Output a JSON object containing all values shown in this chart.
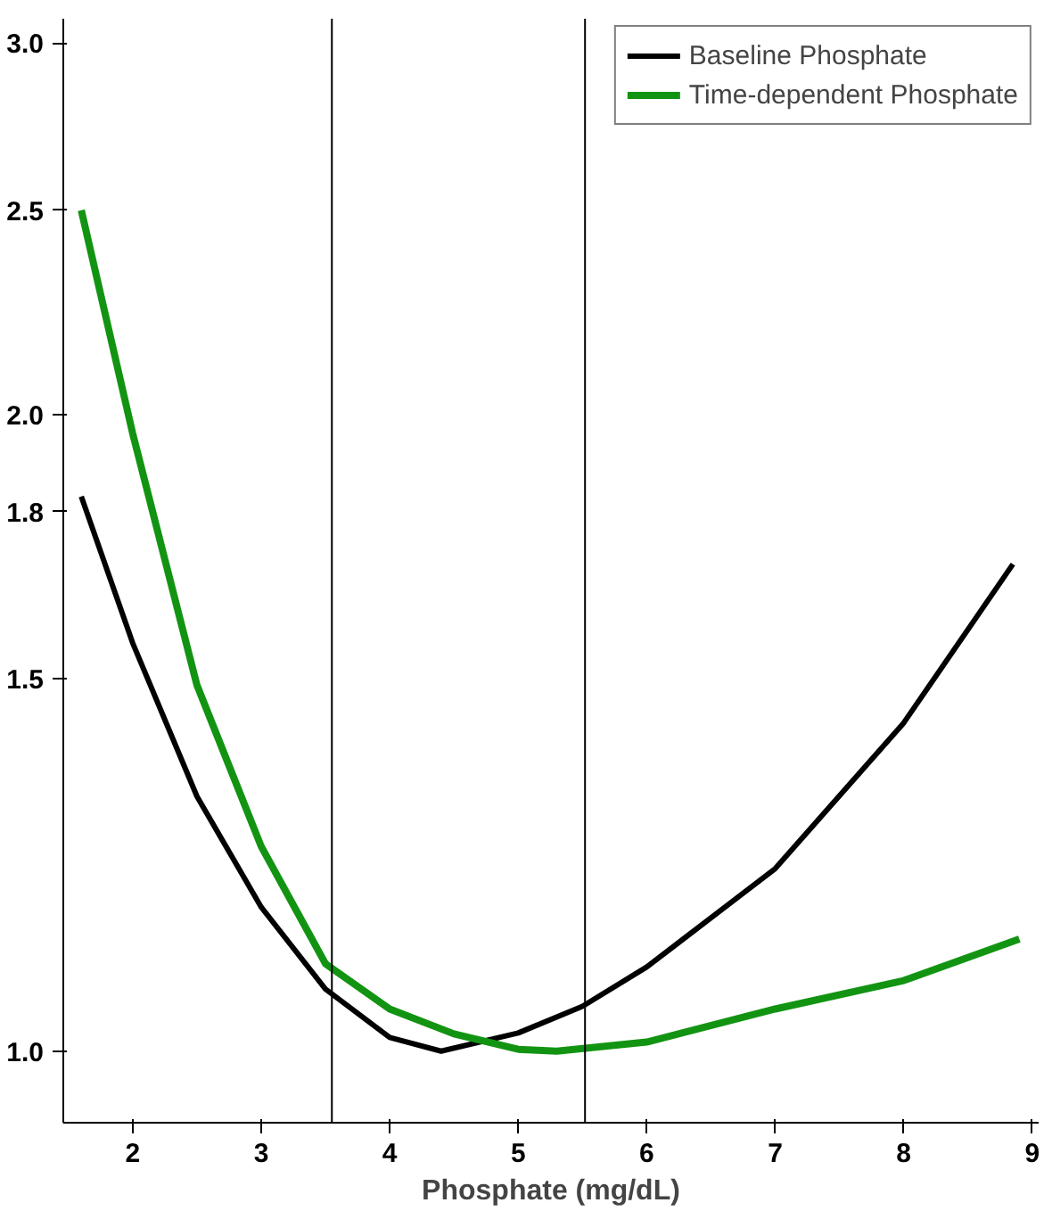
{
  "chart_data": {
    "type": "line",
    "xlabel": "Phosphate (mg/dL)",
    "log": "y",
    "xlim": [
      1.46,
      9.05
    ],
    "ylim": [
      0.925,
      3.08
    ],
    "xticks": [
      2,
      3,
      4,
      5,
      6,
      7,
      8,
      9
    ],
    "yticks": [
      {
        "value": 1,
        "label": "1.0"
      },
      1.5,
      1.8,
      {
        "value": 2,
        "label": "2.0"
      },
      2.5,
      {
        "value": 3,
        "label": "3.0"
      }
    ],
    "grid": false,
    "legend": "top right",
    "marker": "none",
    "line_style": "solid",
    "ref_lines": [
      {
        "axis": "x",
        "value": 3.55,
        "color": "#000000"
      },
      {
        "axis": "x",
        "value": 5.52,
        "color": "#000000"
      }
    ],
    "series": [
      {
        "name": "Baseline Phosphate",
        "color": "#000000",
        "x": [
          1.6,
          2,
          2.5,
          3,
          3.5,
          4,
          4.4,
          5,
          5.5,
          6,
          7,
          8,
          8.85
        ],
        "values": [
          1.83,
          1.56,
          1.32,
          1.17,
          1.07,
          1.015,
          1.0,
          1.02,
          1.05,
          1.096,
          1.22,
          1.43,
          1.7
        ]
      },
      {
        "name": "Time-dependent Phosphate",
        "color": "#129412",
        "x": [
          1.6,
          2,
          2.5,
          3,
          3.5,
          4,
          4.5,
          5,
          5.3,
          6,
          7,
          8,
          8.9
        ],
        "values": [
          2.5,
          1.96,
          1.49,
          1.25,
          1.1,
          1.047,
          1.019,
          1.002,
          1.0,
          1.01,
          1.047,
          1.08,
          1.13
        ]
      }
    ]
  }
}
